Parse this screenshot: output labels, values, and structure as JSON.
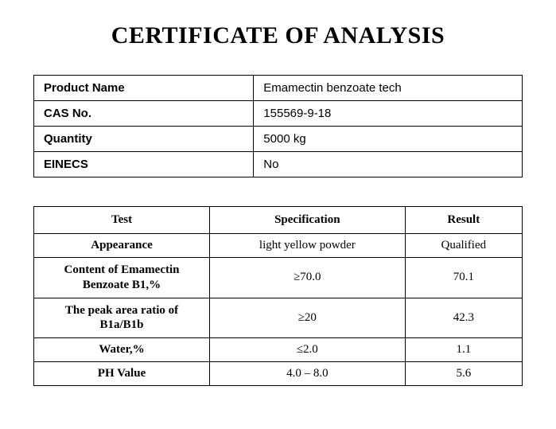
{
  "title": "CERTIFICATE OF ANALYSIS",
  "info_table": {
    "rows": [
      {
        "label": "Product Name",
        "value": "Emamectin benzoate tech"
      },
      {
        "label": "CAS No.",
        "value": "155569-9-18"
      },
      {
        "label": "Quantity",
        "value": "5000 kg"
      },
      {
        "label": "EINECS",
        "value": "No"
      }
    ]
  },
  "test_table": {
    "headers": {
      "test": "Test",
      "specification": "Specification",
      "result": "Result"
    },
    "rows": [
      {
        "test": "Appearance",
        "specification": "light yellow powder",
        "result": "Qualified"
      },
      {
        "test": "Content of Emamectin Benzoate B1,%",
        "specification": "≥70.0",
        "result": "70.1"
      },
      {
        "test": "The peak area ratio of B1a/B1b",
        "specification": "≥20",
        "result": "42.3"
      },
      {
        "test": "Water,%",
        "specification": "≤2.0",
        "result": "1.1"
      },
      {
        "test": "PH Value",
        "specification": "4.0 – 8.0",
        "result": "5.6"
      }
    ]
  },
  "style": {
    "background_color": "#ffffff",
    "border_color": "#000000",
    "text_color": "#000000",
    "title_fontsize": 30,
    "info_fontsize": 15,
    "test_fontsize": 15,
    "info_label_font": "Arial",
    "test_font": "Times New Roman",
    "column_widths": {
      "test": "36%",
      "spec": "40%",
      "result": "24%"
    }
  }
}
